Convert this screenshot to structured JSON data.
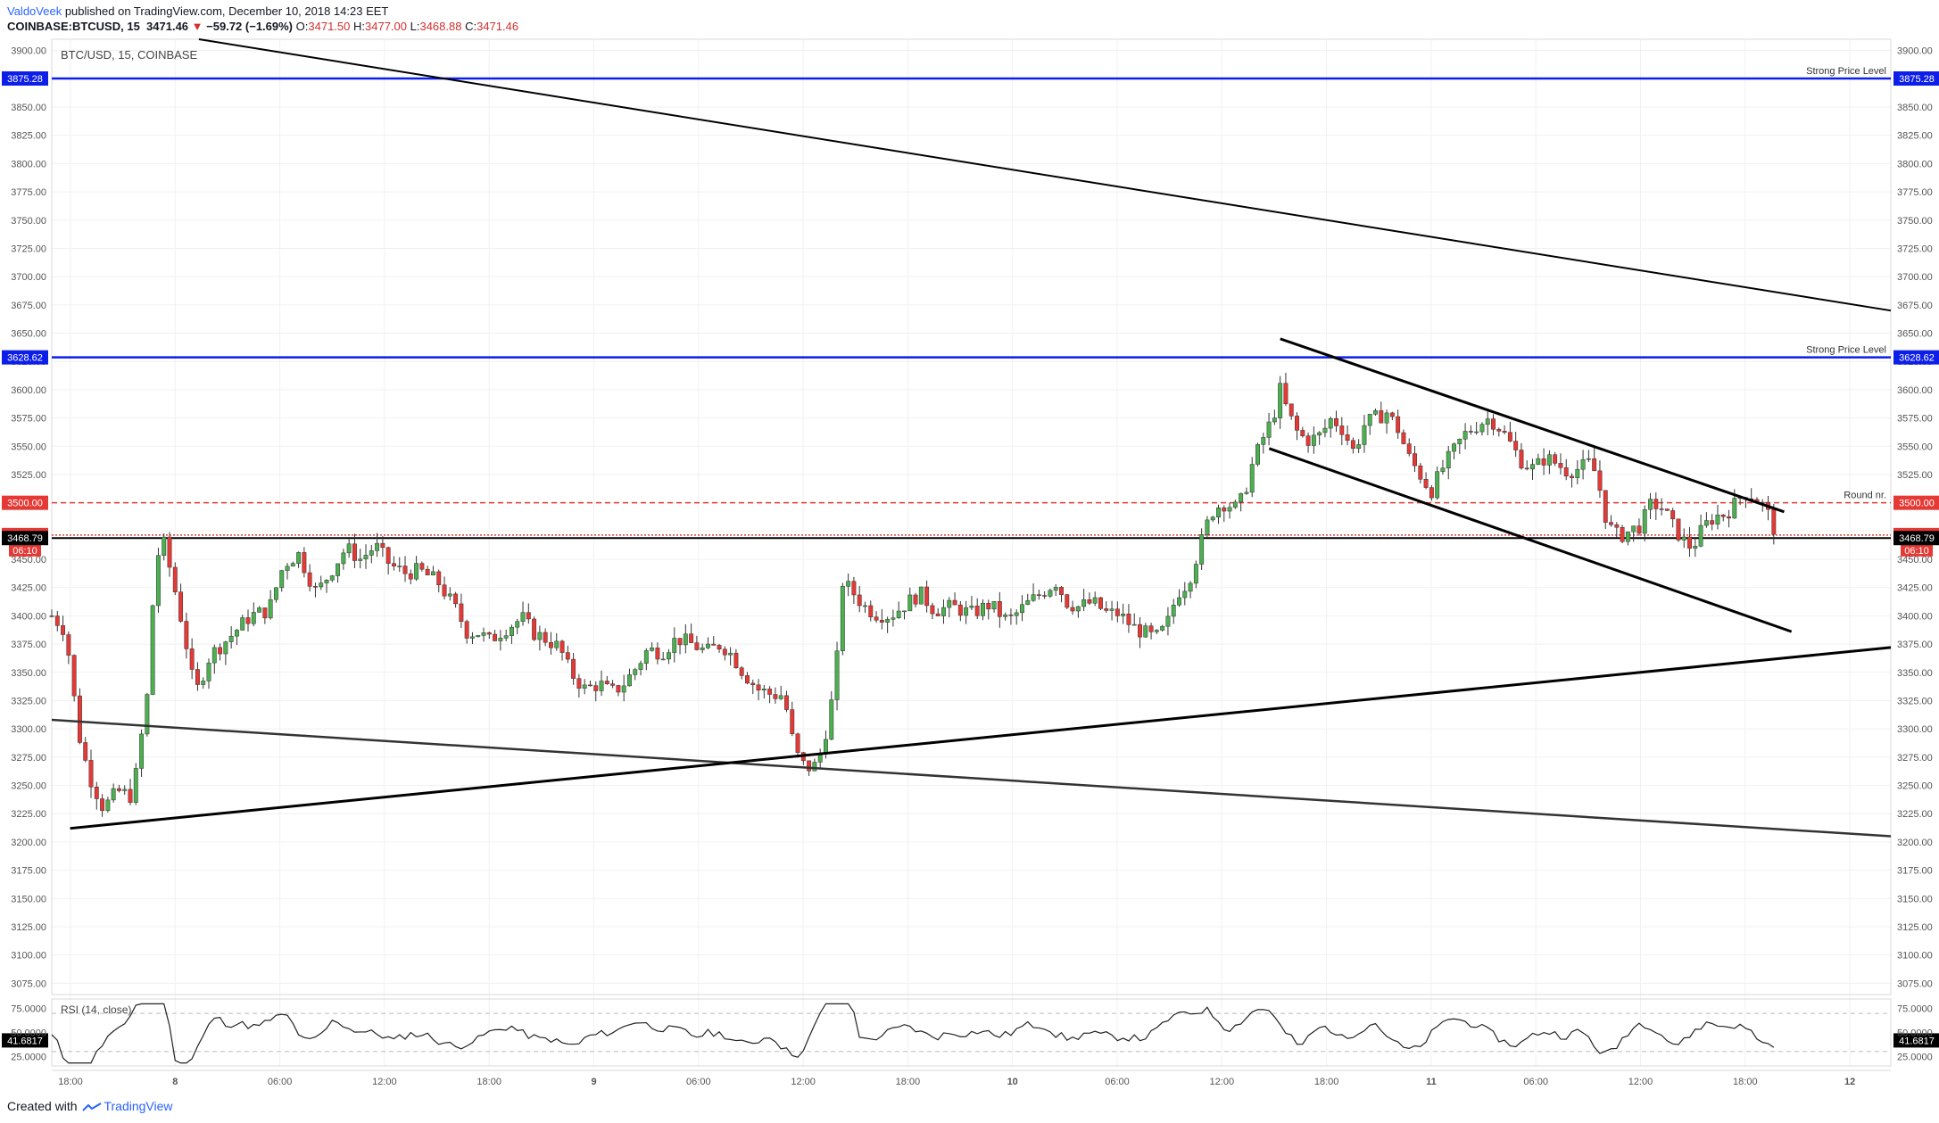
{
  "header": {
    "author": "ValdoVeek",
    "published": " published on TradingView.com, December 10, 2018 14:23 EET",
    "symbol": "COINBASE:BTCUSD, 15",
    "last": "3471.46",
    "change": "−59.72 (−1.69%)",
    "open_label": "O:",
    "open": "3471.50",
    "high_label": "H:",
    "high": "3477.00",
    "low_label": "L:",
    "low": "3468.88",
    "close_label": "C:",
    "close": "3471.46"
  },
  "chart_data": {
    "type": "candlestick",
    "title": "BTC/USD, 15, COINBASE",
    "price_axis": {
      "ylim": [
        3065,
        3910
      ],
      "ticks": [
        "3900.00",
        "3875.00",
        "3850.00",
        "3825.00",
        "3800.00",
        "3775.00",
        "3750.00",
        "3725.00",
        "3700.00",
        "3675.00",
        "3650.00",
        "3625.00",
        "3600.00",
        "3575.00",
        "3550.00",
        "3525.00",
        "3500.00",
        "3475.00",
        "3450.00",
        "3425.00",
        "3400.00",
        "3375.00",
        "3350.00",
        "3325.00",
        "3300.00",
        "3275.00",
        "3250.00",
        "3225.00",
        "3200.00",
        "3175.00",
        "3150.00",
        "3125.00",
        "3100.00",
        "3075.00"
      ]
    },
    "time_axis": {
      "labels": [
        "18:00",
        "8",
        "06:00",
        "12:00",
        "18:00",
        "9",
        "06:00",
        "12:00",
        "18:00",
        "10",
        "06:00",
        "12:00",
        "18:00",
        "11",
        "06:00",
        "12:00",
        "18:00",
        "12"
      ],
      "bold_labels": [
        "8",
        "9",
        "10",
        "11",
        "12"
      ]
    },
    "levels": [
      {
        "price": 3875.28,
        "label": "3875.28",
        "text": "Strong Price Level",
        "color": "#0d1ee8",
        "style": "solid"
      },
      {
        "price": 3628.62,
        "label": "3628.62",
        "text": "Strong Price Level",
        "color": "#0d1ee8",
        "style": "solid"
      },
      {
        "price": 3500.0,
        "label": "3500.00",
        "text": "Round nr.",
        "color": "#e53935",
        "style": "dashed"
      },
      {
        "price": 3471.46,
        "label": "3471.46",
        "countdown": "06:10",
        "text": "",
        "color": "#e53935",
        "style": "dotted"
      },
      {
        "price": 3468.79,
        "label": "3468.79",
        "text": "",
        "color": "#000000",
        "style": "solid"
      }
    ],
    "candle_path": [
      [
        0,
        3400
      ],
      [
        6,
        3390
      ],
      [
        10,
        3360
      ],
      [
        14,
        3300
      ],
      [
        20,
        3260
      ],
      [
        28,
        3230
      ],
      [
        36,
        3245
      ],
      [
        44,
        3240
      ],
      [
        52,
        3330
      ],
      [
        56,
        3440
      ],
      [
        60,
        3470
      ],
      [
        66,
        3430
      ],
      [
        72,
        3385
      ],
      [
        78,
        3330
      ],
      [
        86,
        3365
      ],
      [
        96,
        3380
      ],
      [
        108,
        3400
      ],
      [
        118,
        3405
      ],
      [
        126,
        3445
      ],
      [
        134,
        3455
      ],
      [
        144,
        3420
      ],
      [
        152,
        3440
      ],
      [
        160,
        3460
      ],
      [
        168,
        3450
      ],
      [
        176,
        3462
      ],
      [
        184,
        3445
      ],
      [
        192,
        3438
      ],
      [
        200,
        3440
      ],
      [
        210,
        3430
      ],
      [
        220,
        3405
      ],
      [
        226,
        3385
      ],
      [
        232,
        3385
      ],
      [
        238,
        3378
      ],
      [
        246,
        3388
      ],
      [
        256,
        3398
      ],
      [
        262,
        3385
      ],
      [
        268,
        3380
      ],
      [
        276,
        3372
      ],
      [
        282,
        3350
      ],
      [
        290,
        3335
      ],
      [
        298,
        3340
      ],
      [
        304,
        3332
      ],
      [
        310,
        3338
      ],
      [
        316,
        3350
      ],
      [
        324,
        3370
      ],
      [
        332,
        3368
      ],
      [
        340,
        3380
      ],
      [
        348,
        3375
      ],
      [
        356,
        3368
      ],
      [
        364,
        3375
      ],
      [
        370,
        3365
      ],
      [
        376,
        3350
      ],
      [
        384,
        3335
      ],
      [
        392,
        3330
      ],
      [
        398,
        3330
      ],
      [
        404,
        3280
      ],
      [
        410,
        3265
      ],
      [
        416,
        3268
      ],
      [
        420,
        3290
      ],
      [
        426,
        3340
      ],
      [
        430,
        3430
      ],
      [
        436,
        3420
      ],
      [
        442,
        3408
      ],
      [
        448,
        3402
      ],
      [
        456,
        3400
      ],
      [
        464,
        3410
      ],
      [
        472,
        3420
      ],
      [
        480,
        3405
      ],
      [
        490,
        3408
      ],
      [
        500,
        3402
      ],
      [
        510,
        3410
      ],
      [
        520,
        3395
      ],
      [
        530,
        3410
      ],
      [
        538,
        3420
      ],
      [
        546,
        3430
      ],
      [
        552,
        3412
      ],
      [
        558,
        3408
      ],
      [
        566,
        3412
      ],
      [
        574,
        3402
      ],
      [
        580,
        3402
      ],
      [
        588,
        3390
      ],
      [
        594,
        3385
      ],
      [
        600,
        3380
      ],
      [
        606,
        3390
      ],
      [
        612,
        3420
      ],
      [
        618,
        3430
      ],
      [
        624,
        3460
      ],
      [
        628,
        3480
      ],
      [
        632,
        3495
      ],
      [
        638,
        3500
      ],
      [
        644,
        3495
      ],
      [
        648,
        3505
      ],
      [
        652,
        3530
      ],
      [
        658,
        3555
      ],
      [
        664,
        3575
      ],
      [
        668,
        3600
      ],
      [
        672,
        3580
      ],
      [
        678,
        3560
      ],
      [
        684,
        3555
      ],
      [
        690,
        3560
      ],
      [
        696,
        3575
      ],
      [
        702,
        3565
      ],
      [
        708,
        3545
      ],
      [
        714,
        3570
      ],
      [
        720,
        3575
      ],
      [
        726,
        3580
      ],
      [
        732,
        3565
      ],
      [
        738,
        3540
      ],
      [
        744,
        3525
      ],
      [
        750,
        3510
      ],
      [
        756,
        3530
      ],
      [
        762,
        3545
      ],
      [
        768,
        3560
      ],
      [
        776,
        3570
      ],
      [
        782,
        3575
      ],
      [
        788,
        3565
      ],
      [
        794,
        3550
      ],
      [
        800,
        3535
      ],
      [
        806,
        3530
      ],
      [
        812,
        3540
      ],
      [
        818,
        3535
      ],
      [
        824,
        3528
      ],
      [
        830,
        3530
      ],
      [
        836,
        3535
      ],
      [
        840,
        3525
      ],
      [
        846,
        3480
      ],
      [
        852,
        3470
      ],
      [
        858,
        3475
      ],
      [
        864,
        3480
      ],
      [
        870,
        3500
      ],
      [
        876,
        3495
      ],
      [
        882,
        3478
      ],
      [
        888,
        3465
      ],
      [
        892,
        3460
      ],
      [
        898,
        3478
      ],
      [
        904,
        3488
      ],
      [
        910,
        3490
      ],
      [
        916,
        3500
      ],
      [
        920,
        3510
      ],
      [
        926,
        3505
      ],
      [
        932,
        3495
      ],
      [
        938,
        3471
      ]
    ],
    "rsi": {
      "label": "RSI (14, close)",
      "value": "41.6817",
      "ticks": [
        "75.0000",
        "50.0000",
        "25.0000"
      ],
      "ylim": [
        15,
        85
      ],
      "bands": [
        70,
        30
      ]
    },
    "trendlines": [
      {
        "p1": [
          80,
          3910
        ],
        "p2": [
          1000,
          3670
        ],
        "width": 2
      },
      {
        "p1": [
          0,
          3308
        ],
        "p2": [
          1000,
          3205
        ],
        "width": 2.5,
        "color": "#333333"
      },
      {
        "p1": [
          10,
          3212
        ],
        "p2": [
          1000,
          3372
        ],
        "width": 3
      },
      {
        "p1": [
          668,
          3645
        ],
        "p2": [
          942,
          3492
        ],
        "width": 3
      },
      {
        "p1": [
          662,
          3548
        ],
        "p2": [
          946,
          3386
        ],
        "width": 3
      }
    ]
  },
  "footer": {
    "created": "Created with",
    "brand": "TradingView"
  }
}
